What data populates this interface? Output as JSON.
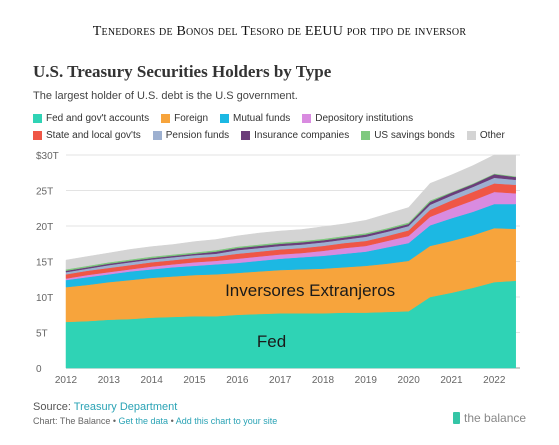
{
  "header": {
    "title": "Tenedores de Bonos del Tesoro de EEUU por tipo de inversor"
  },
  "chart_data": {
    "type": "area",
    "title": "U.S. Treasury Securities Holders by Type",
    "subtitle": "The largest holder of U.S. debt is the U.S government.",
    "ylim": [
      0,
      30
    ],
    "xlim": [
      2012,
      2022.6
    ],
    "y_ticks": [
      0,
      5,
      10,
      15,
      20,
      25,
      30
    ],
    "y_tick_labels": [
      "0",
      "5T",
      "10T",
      "15T",
      "20T",
      "25T",
      "$30T"
    ],
    "x_ticks": [
      2012,
      2013,
      2014,
      2015,
      2016,
      2017,
      2018,
      2019,
      2020,
      2021,
      2022
    ],
    "grid": true,
    "legend_position": "top",
    "x": [
      2012.0,
      2012.5,
      2013.0,
      2013.5,
      2014.0,
      2014.5,
      2015.0,
      2015.5,
      2016.0,
      2016.5,
      2017.0,
      2017.5,
      2018.0,
      2018.5,
      2019.0,
      2019.5,
      2020.0,
      2020.5,
      2021.0,
      2021.5,
      2022.0,
      2022.5
    ],
    "series": [
      {
        "name": "Fed and gov't accounts",
        "color": "#2fd3b5",
        "values": [
          6.5,
          6.6,
          6.8,
          6.9,
          7.1,
          7.2,
          7.3,
          7.3,
          7.5,
          7.6,
          7.7,
          7.7,
          7.7,
          7.8,
          7.8,
          7.9,
          8.0,
          10.0,
          10.6,
          11.3,
          12.1,
          12.3
        ]
      },
      {
        "name": "Foreign",
        "color": "#f7a43c",
        "values": [
          4.9,
          5.1,
          5.3,
          5.5,
          5.6,
          5.7,
          5.8,
          5.9,
          5.9,
          6.0,
          6.1,
          6.2,
          6.3,
          6.4,
          6.6,
          6.8,
          7.1,
          7.2,
          7.3,
          7.4,
          7.6,
          7.3
        ]
      },
      {
        "name": "Mutual funds",
        "color": "#1cb8e3",
        "values": [
          1.0,
          1.1,
          1.1,
          1.2,
          1.2,
          1.3,
          1.3,
          1.4,
          1.4,
          1.5,
          1.6,
          1.7,
          1.8,
          1.9,
          2.0,
          2.3,
          2.5,
          2.9,
          3.2,
          3.3,
          3.4,
          3.5
        ]
      },
      {
        "name": "Depository institutions",
        "color": "#d98be0",
        "values": [
          0.2,
          0.3,
          0.3,
          0.3,
          0.4,
          0.4,
          0.5,
          0.5,
          0.6,
          0.6,
          0.6,
          0.6,
          0.7,
          0.8,
          0.8,
          0.9,
          1.0,
          1.2,
          1.4,
          1.6,
          1.7,
          1.5
        ]
      },
      {
        "name": "State and local gov'ts",
        "color": "#ef5646",
        "values": [
          0.6,
          0.6,
          0.6,
          0.6,
          0.6,
          0.6,
          0.6,
          0.6,
          0.7,
          0.7,
          0.7,
          0.7,
          0.7,
          0.7,
          0.7,
          0.7,
          0.8,
          1.0,
          1.1,
          1.2,
          1.2,
          1.2
        ]
      },
      {
        "name": "Pension funds",
        "color": "#9db0d0",
        "values": [
          0.3,
          0.3,
          0.4,
          0.4,
          0.4,
          0.4,
          0.4,
          0.4,
          0.5,
          0.5,
          0.5,
          0.5,
          0.5,
          0.5,
          0.6,
          0.6,
          0.6,
          0.7,
          0.7,
          0.7,
          0.8,
          0.7
        ]
      },
      {
        "name": "Insurance companies",
        "color": "#6b3d7a",
        "values": [
          0.2,
          0.2,
          0.2,
          0.2,
          0.2,
          0.2,
          0.2,
          0.3,
          0.3,
          0.3,
          0.3,
          0.3,
          0.3,
          0.3,
          0.3,
          0.3,
          0.3,
          0.4,
          0.4,
          0.4,
          0.5,
          0.4
        ]
      },
      {
        "name": "US savings bonds",
        "color": "#7fc97f",
        "values": [
          0.2,
          0.2,
          0.2,
          0.2,
          0.2,
          0.2,
          0.2,
          0.2,
          0.2,
          0.2,
          0.2,
          0.2,
          0.2,
          0.2,
          0.2,
          0.2,
          0.2,
          0.2,
          0.1,
          0.1,
          0.1,
          0.1
        ]
      },
      {
        "name": "Other",
        "color": "#d4d4d4",
        "values": [
          1.3,
          1.3,
          1.3,
          1.4,
          1.4,
          1.4,
          1.5,
          1.5,
          1.5,
          1.6,
          1.6,
          1.6,
          1.7,
          1.7,
          1.8,
          2.0,
          2.1,
          2.4,
          2.4,
          2.5,
          2.6,
          3.0
        ]
      }
    ],
    "annotations": [
      {
        "text": "Inversores Extranjeros",
        "x": 2017.7,
        "y": 11.0
      },
      {
        "text": "Fed",
        "x": 2016.8,
        "y": 3.8
      }
    ]
  },
  "footer": {
    "source_label": "Source: ",
    "source_link": "Treasury Department",
    "credit_prefix": "Chart: The Balance • ",
    "get_data": "Get the data",
    "separator": " • ",
    "add_chart": "Add this chart to your site"
  },
  "brand": {
    "name": "the balance"
  }
}
